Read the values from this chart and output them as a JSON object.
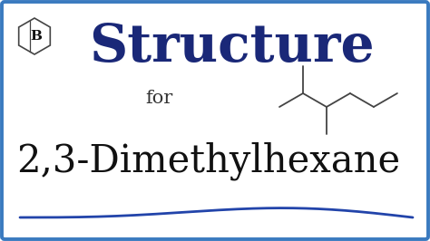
{
  "bg_color": "#ffffff",
  "border_color": "#3a7abf",
  "border_linewidth": 2.8,
  "title_text": "Structure",
  "title_color": "#1a2878",
  "title_fontsize": 42,
  "for_text": "for",
  "for_color": "#333333",
  "for_fontsize": 15,
  "compound_text": "2,3-Dimethylhexane",
  "compound_color": "#111111",
  "compound_fontsize": 30,
  "hex_color": "#444444",
  "hex_letter": "B",
  "hex_letter_color": "#111111",
  "hex_letter_fontsize": 11,
  "molecule_color": "#444444",
  "molecule_linewidth": 1.3,
  "wave_color": "#2244aa",
  "wave_linewidth": 2.0,
  "figw": 4.74,
  "figh": 2.66,
  "dpi": 100
}
